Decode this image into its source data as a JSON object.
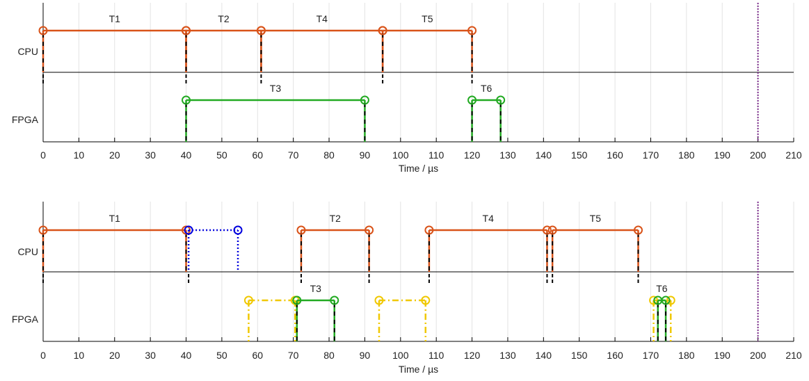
{
  "chart_data": [
    {
      "type": "timeline",
      "xlabel": "Time / µs",
      "xlim": [
        0,
        210
      ],
      "xticks": [
        0,
        10,
        20,
        30,
        40,
        50,
        60,
        70,
        80,
        90,
        100,
        110,
        120,
        130,
        140,
        150,
        160,
        170,
        180,
        190,
        200,
        210
      ],
      "grid": true,
      "rows": [
        "CPU",
        "FPGA"
      ],
      "deadline": 200,
      "colors": {
        "CPU": "#d95319",
        "FPGA": "#22aa22",
        "deadline": "#7e2f8e",
        "axis": "#000000"
      },
      "segments": [
        {
          "row": "CPU",
          "label": "T1",
          "start": 0,
          "end": 40,
          "style": "solid",
          "color": "#d95319"
        },
        {
          "row": "CPU",
          "label": "T2",
          "start": 40,
          "end": 61,
          "style": "solid",
          "color": "#d95319"
        },
        {
          "row": "CPU",
          "label": "T4",
          "start": 61,
          "end": 95,
          "style": "solid",
          "color": "#d95319"
        },
        {
          "row": "CPU",
          "label": "T5",
          "start": 95,
          "end": 120,
          "style": "solid",
          "color": "#d95319"
        },
        {
          "row": "FPGA",
          "label": "T3",
          "start": 40,
          "end": 90,
          "style": "solid",
          "color": "#22aa22"
        },
        {
          "row": "FPGA",
          "label": "T6",
          "start": 120,
          "end": 128,
          "style": "solid",
          "color": "#22aa22"
        }
      ],
      "cpu_axis_marks": [
        0,
        40,
        61,
        95,
        120
      ]
    },
    {
      "type": "timeline",
      "xlabel": "Time / µs",
      "xlim": [
        0,
        210
      ],
      "xticks": [
        0,
        10,
        20,
        30,
        40,
        50,
        60,
        70,
        80,
        90,
        100,
        110,
        120,
        130,
        140,
        150,
        160,
        170,
        180,
        190,
        200,
        210
      ],
      "grid": true,
      "rows": [
        "CPU",
        "FPGA"
      ],
      "deadline": 200,
      "colors": {
        "CPU": "#d95319",
        "FPGA": "#22aa22",
        "transfer": "#0000dd",
        "reconfig": "#f0c800",
        "deadline": "#7e2f8e",
        "axis": "#000000"
      },
      "segments": [
        {
          "row": "CPU",
          "label": "T1",
          "start": 0,
          "end": 40,
          "style": "solid",
          "color": "#d95319"
        },
        {
          "row": "CPU",
          "label": "",
          "start": 40.7,
          "end": 54.5,
          "style": "dotted",
          "color": "#0000dd"
        },
        {
          "row": "CPU",
          "label": "T2",
          "start": 72.2,
          "end": 91.2,
          "style": "solid",
          "color": "#d95319"
        },
        {
          "row": "CPU",
          "label": "T4",
          "start": 108,
          "end": 141,
          "style": "solid",
          "color": "#d95319"
        },
        {
          "row": "CPU",
          "label": "T5",
          "start": 142.5,
          "end": 166.5,
          "style": "solid",
          "color": "#d95319"
        },
        {
          "row": "FPGA",
          "label": "",
          "start": 57.5,
          "end": 70.5,
          "style": "dashdot",
          "color": "#f0c800"
        },
        {
          "row": "FPGA",
          "label": "T3",
          "start": 71,
          "end": 81.5,
          "style": "solid",
          "color": "#22aa22"
        },
        {
          "row": "FPGA",
          "label": "",
          "start": 94,
          "end": 107,
          "style": "dashdot",
          "color": "#f0c800"
        },
        {
          "row": "FPGA",
          "label": "",
          "start": 170.8,
          "end": 175.6,
          "style": "dashdot",
          "color": "#f0c800"
        },
        {
          "row": "FPGA",
          "label": "T6",
          "start": 172,
          "end": 174.2,
          "style": "solid",
          "color": "#22aa22"
        }
      ],
      "cpu_axis_marks": [
        0,
        40.7,
        72.2,
        91.2,
        108,
        141,
        142.5,
        166.5
      ]
    }
  ]
}
